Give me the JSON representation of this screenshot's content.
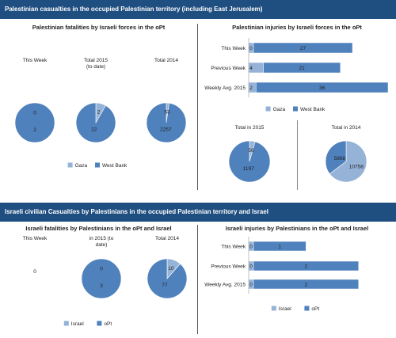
{
  "banners": {
    "top": "Palestinian casualties in the occupied Palestinian territory (including East Jerusalem)",
    "bottom": "Israeli civilian Casualties by Palestinians in the occupied Palestinian territory and Israel"
  },
  "colors": {
    "banner": "#1f4e80",
    "series_a": "#95b3d7",
    "series_b": "#4f81bd",
    "bar_light": "#95b3d7",
    "bar_dark": "#4f81bd"
  },
  "chart_data": [
    {
      "type": "pie",
      "title": "Palestinian fatalities by Israeli forces in the oPt",
      "legend": [
        "Gaza",
        "West Bank"
      ],
      "pies": [
        {
          "label": "This Week",
          "values": [
            0,
            2
          ]
        },
        {
          "label": "Total 2015\n(to date)",
          "values": [
            2,
            22
          ]
        },
        {
          "label": "Total 2014",
          "values": [
            53,
            2257
          ]
        }
      ]
    },
    {
      "type": "bar",
      "orientation": "horizontal",
      "stacked": true,
      "title": "Palestinian injuries by Israeli forces in the oPt",
      "categories": [
        "This Week",
        "Previous Week",
        "Weekly Avg. 2015"
      ],
      "series": [
        {
          "name": "Gaza",
          "values": [
            0,
            4,
            2
          ]
        },
        {
          "name": "West Bank",
          "values": [
            27,
            21,
            36
          ]
        }
      ]
    },
    {
      "type": "pie",
      "title": "",
      "legend": [
        "Gaza",
        "West Bank"
      ],
      "pies": [
        {
          "label": "Total in 2015",
          "values": [
            56,
            1197
          ]
        },
        {
          "label": "Total in 2014",
          "values": [
            10758,
            5868
          ]
        }
      ]
    },
    {
      "type": "pie",
      "title": "Israeli fatalities by Palestinians in the oPt and Israel",
      "legend": [
        "Israel",
        "oPt"
      ],
      "pies": [
        {
          "label": "This Week",
          "values": [
            0,
            0
          ],
          "empty_text": "0"
        },
        {
          "label": "in 2015 (to\ndate)",
          "values": [
            0,
            3
          ]
        },
        {
          "label": "Total 2014",
          "values": [
            10,
            77
          ]
        }
      ]
    },
    {
      "type": "bar",
      "orientation": "horizontal",
      "stacked": true,
      "title": "Israeli injuries by Palestinians in the oPt and Israel",
      "categories": [
        "This Week",
        "Previous Week",
        "Weekly Avg. 2015"
      ],
      "series": [
        {
          "name": "Israel",
          "values": [
            0,
            0,
            0
          ]
        },
        {
          "name": "oPt",
          "values": [
            1,
            2,
            2
          ]
        }
      ]
    }
  ]
}
